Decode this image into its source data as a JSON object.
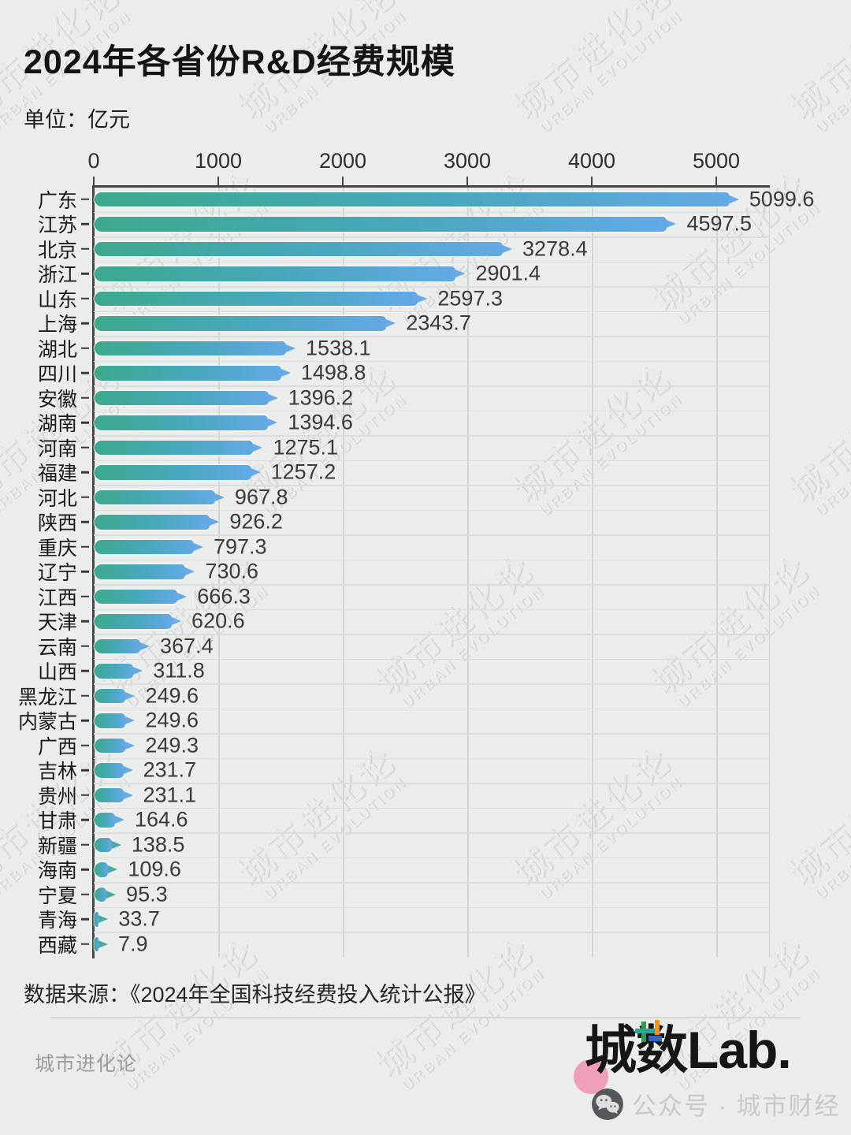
{
  "page": {
    "title": "2024年各省份R&D经费规模",
    "unit_label": "单位：亿元",
    "source": "数据来源：《2024年全国科技经费投入统计公报》",
    "footer_left": "城市进化论",
    "watermark": {
      "cn": "城市进化论",
      "en": "URBAN EVOLUTION"
    },
    "logo": {
      "cheng": "城",
      "shu": "数",
      "lab": "Lab.",
      "wechat_line": "公众号 · 城市财经"
    }
  },
  "colors": {
    "background": "#ebedec",
    "bar_gradient_start": "#3ca98c",
    "bar_gradient_mid": "#49a8bd",
    "bar_gradient_end": "#63a9e6",
    "bar_tip_blue": "#66abe8",
    "bar_tip_teal": "#4aa9a0",
    "axis": "#454545",
    "gridline": "#d4d6d5",
    "value_label": "#3a3a3a",
    "logo_pink": "#ef9fb7"
  },
  "chart_data": {
    "type": "bar",
    "orientation": "horizontal",
    "title": "2024年各省份R&D经费规模",
    "unit": "亿元",
    "xlim": [
      0,
      5430
    ],
    "x_ticks": [
      0,
      1000,
      2000,
      3000,
      4000,
      5000
    ],
    "grid": true,
    "legend": false,
    "categories": [
      "广东",
      "江苏",
      "北京",
      "浙江",
      "山东",
      "上海",
      "湖北",
      "四川",
      "安徽",
      "湖南",
      "河南",
      "福建",
      "河北",
      "陕西",
      "重庆",
      "辽宁",
      "江西",
      "天津",
      "云南",
      "山西",
      "黑龙江",
      "内蒙古",
      "广西",
      "吉林",
      "贵州",
      "甘肃",
      "新疆",
      "海南",
      "宁夏",
      "青海",
      "西藏"
    ],
    "values": [
      5099.6,
      4597.5,
      3278.4,
      2901.4,
      2597.3,
      2343.7,
      1538.1,
      1498.8,
      1396.2,
      1394.6,
      1275.1,
      1257.2,
      967.8,
      926.2,
      797.3,
      730.6,
      666.3,
      620.6,
      367.4,
      311.8,
      249.6,
      249.6,
      249.3,
      231.7,
      231.1,
      164.6,
      138.5,
      109.6,
      95.3,
      33.7,
      7.9
    ]
  }
}
